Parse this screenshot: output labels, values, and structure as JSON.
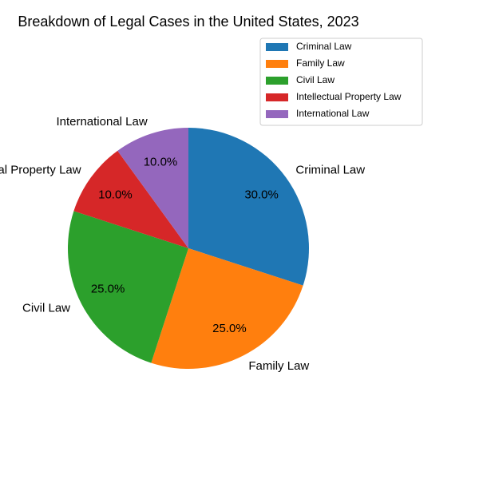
{
  "chart_data": {
    "type": "pie",
    "title": "Breakdown of Legal Cases in the United States, 2023",
    "categories": [
      "Criminal Law",
      "Family Law",
      "Civil Law",
      "Intellectual Property Law",
      "International Law"
    ],
    "values": [
      30,
      25,
      25,
      10,
      10
    ],
    "percent_labels": [
      "30.0%",
      "25.0%",
      "25.0%",
      "10.0%",
      "10.0%"
    ],
    "colors": [
      "#1f77b4",
      "#ff7f0e",
      "#2ca02c",
      "#d62728",
      "#9467bd"
    ],
    "start_angle_deg": 90,
    "direction": "clockwise",
    "legend": {
      "placement": "upper-right",
      "entries": [
        "Criminal Law",
        "Family Law",
        "Civil Law",
        "Intellectual Property Law",
        "International Law"
      ]
    }
  }
}
